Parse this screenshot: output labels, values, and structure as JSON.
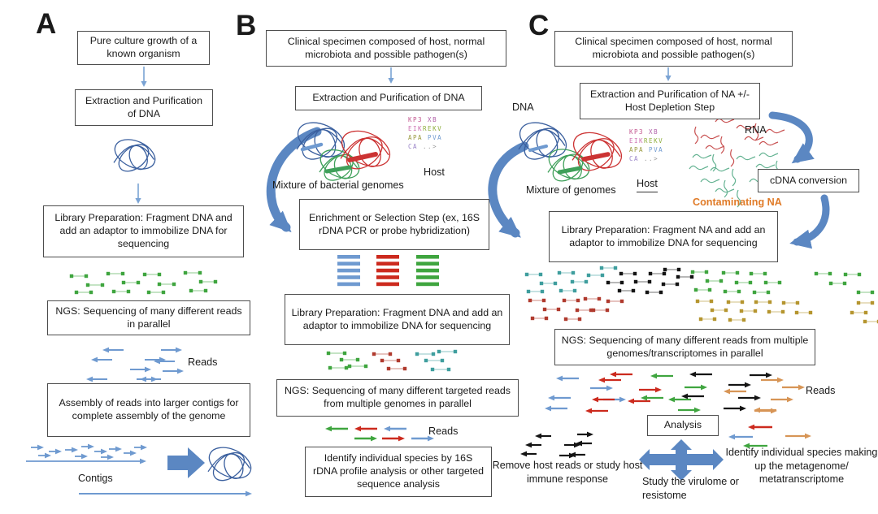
{
  "panels": {
    "a": {
      "label": "A",
      "boxes": {
        "pure_culture": "Pure culture growth of a known organism",
        "extraction": "Extraction and Purification of DNA",
        "library_prep": "Library Preparation: Fragment DNA and add an adaptor to immobilize DNA for sequencing",
        "ngs": "NGS: Sequencing of many different reads in parallel",
        "assembly": "Assembly of reads into larger contigs for complete assembly of the genome"
      },
      "labels": {
        "reads": "Reads",
        "contigs": "Contigs"
      }
    },
    "b": {
      "label": "B",
      "boxes": {
        "clinical": "Clinical specimen composed of host, normal microbiota and possible pathogen(s)",
        "extraction": "Extraction and Purification of DNA",
        "enrichment": "Enrichment or Selection Step (ex, 16S rDNA PCR or probe hybridization)",
        "library_prep": "Library Preparation: Fragment DNA and add an adaptor to immobilize DNA for sequencing",
        "ngs": "NGS: Sequencing of many different targeted reads from multiple genomes in parallel",
        "identify": "Identify individual species by 16S rDNA profile analysis or other targeted sequence analysis"
      },
      "labels": {
        "mixture": "Mixture of bacterial genomes",
        "host": "Host",
        "reads": "Reads"
      }
    },
    "c": {
      "label": "C",
      "boxes": {
        "clinical": "Clinical specimen composed of host, normal microbiota and possible pathogen(s)",
        "extraction": "Extraction and Purification of NA +/- Host Depletion Step",
        "cdna": "cDNA conversion",
        "library_prep": "Library Preparation: Fragment NA and add an adaptor to immobilize DNA for sequencing",
        "ngs": "NGS: Sequencing of many different reads from multiple genomes/transcriptomes in parallel",
        "analysis": "Analysis"
      },
      "labels": {
        "dna": "DNA",
        "rna": "RNA",
        "mixture": "Mixture of genomes",
        "host": "Host",
        "contaminating": "Contaminating NA",
        "reads": "Reads",
        "outcome_left": "Remove host reads or study host immune response",
        "outcome_bottom": "Study the virulome or resistome",
        "outcome_right": "Identify individual species making up the metagenome/ metatranscriptome"
      }
    }
  },
  "colors": {
    "arrow_blue": "#5b87c2",
    "thin_arrow": "#7aa3d4",
    "read_blue": "#6f9ad0",
    "green": "#3fa53f",
    "red": "#cc2a1e",
    "dark_red": "#b03a2e",
    "teal": "#3f9e9e",
    "olive": "#b5952f",
    "tan": "#d79556",
    "black": "#141414",
    "genome_blue": "#3a5f9e",
    "genome_green": "#3fa05a",
    "genome_red": "#cc3333",
    "rna_red": "#c85050",
    "rna_teal": "#63b291",
    "orange_text": "#e07b28"
  }
}
